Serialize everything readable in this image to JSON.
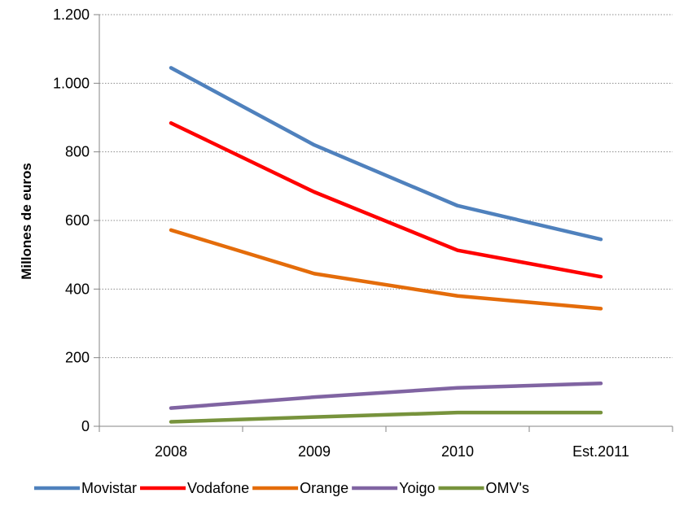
{
  "chart_data": {
    "type": "line",
    "title": "",
    "xlabel": "",
    "ylabel": "Millones de euros",
    "categories": [
      "2008",
      "2009",
      "2010",
      "Est.2011"
    ],
    "ylim": [
      0,
      1200
    ],
    "yticks": [
      0,
      200,
      400,
      600,
      800,
      1000,
      1200
    ],
    "ytick_labels": [
      "0",
      "200",
      "400",
      "600",
      "800",
      "1.000",
      "1.200"
    ],
    "grid": "horizontal dotted",
    "legend": "bottom",
    "series": [
      {
        "name": "Movistar",
        "color": "#4F81BD",
        "values": [
          1045,
          820,
          643,
          545
        ]
      },
      {
        "name": "Vodafone",
        "color": "#FF0000",
        "values": [
          884,
          683,
          513,
          436
        ]
      },
      {
        "name": "Orange",
        "color": "#E46C0A",
        "values": [
          572,
          445,
          380,
          343
        ]
      },
      {
        "name": "Yoigo",
        "color": "#8064A2",
        "values": [
          53,
          85,
          112,
          125
        ]
      },
      {
        "name": "OMV's",
        "color": "#77933C",
        "values": [
          13,
          27,
          40,
          40
        ]
      }
    ]
  }
}
